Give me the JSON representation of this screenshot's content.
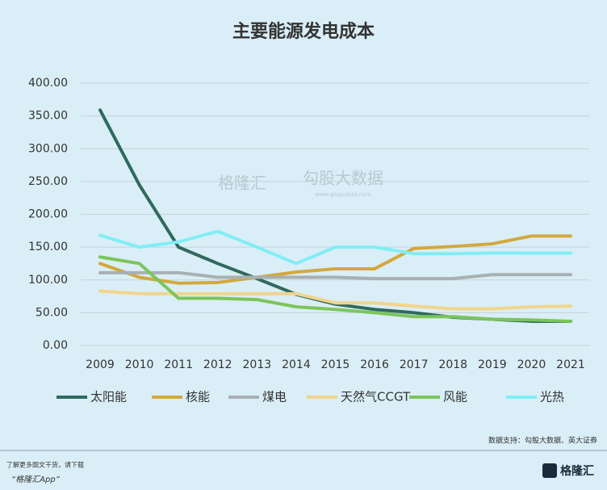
{
  "chart_data": {
    "type": "line",
    "title": "主要能源发电成本",
    "categories": [
      "2009",
      "2010",
      "2011",
      "2012",
      "2013",
      "2014",
      "2015",
      "2016",
      "2017",
      "2018",
      "2019",
      "2020",
      "2021"
    ],
    "series": [
      {
        "name": "太阳能",
        "color": "#2f6a5d",
        "values": [
          359,
          245,
          150,
          125,
          102,
          78,
          63,
          55,
          50,
          43,
          40,
          37,
          37
        ]
      },
      {
        "name": "核能",
        "color": "#d3a83e",
        "values": [
          125,
          104,
          95,
          96,
          104,
          112,
          117,
          117,
          148,
          151,
          155,
          167,
          167
        ]
      },
      {
        "name": "煤电",
        "color": "#a8b0b3",
        "values": [
          111,
          111,
          111,
          104,
          104,
          104,
          104,
          102,
          102,
          102,
          108,
          108,
          108
        ]
      },
      {
        "name": "天然气CCGT",
        "color": "#f0d58d",
        "values": [
          83,
          79,
          79,
          79,
          79,
          79,
          65,
          65,
          60,
          56,
          56,
          59,
          60
        ]
      },
      {
        "name": "风能",
        "color": "#7cc55b",
        "values": [
          135,
          125,
          72,
          72,
          70,
          59,
          55,
          50,
          44,
          44,
          40,
          39,
          37
        ]
      },
      {
        "name": "光热",
        "color": "#80eef4",
        "values": [
          168,
          150,
          158,
          174,
          150,
          125,
          150,
          150,
          140,
          140,
          141,
          141,
          141
        ]
      }
    ],
    "ylim": [
      0,
      400
    ],
    "yticks": [
      {
        "value": 0,
        "label": "0.00"
      },
      {
        "value": 50,
        "label": "50.00"
      },
      {
        "value": 100,
        "label": "100.00"
      },
      {
        "value": 150,
        "label": "150.00"
      },
      {
        "value": 200,
        "label": "200.00"
      },
      {
        "value": 250,
        "label": "250.00"
      },
      {
        "value": 300,
        "label": "300.00"
      },
      {
        "value": 350,
        "label": "350.00"
      },
      {
        "value": 400,
        "label": "400.00"
      }
    ],
    "grid": true,
    "legend": "bottom",
    "source": "数据支持：勾股大数据、英大证券",
    "watermark": [
      "格隆汇",
      "勾股大数据",
      "www.gogudata.com"
    ]
  },
  "footer": {
    "promo": "了解更多图文干货，请下载",
    "app": "“格隆汇App”",
    "logo": "格隆汇"
  }
}
